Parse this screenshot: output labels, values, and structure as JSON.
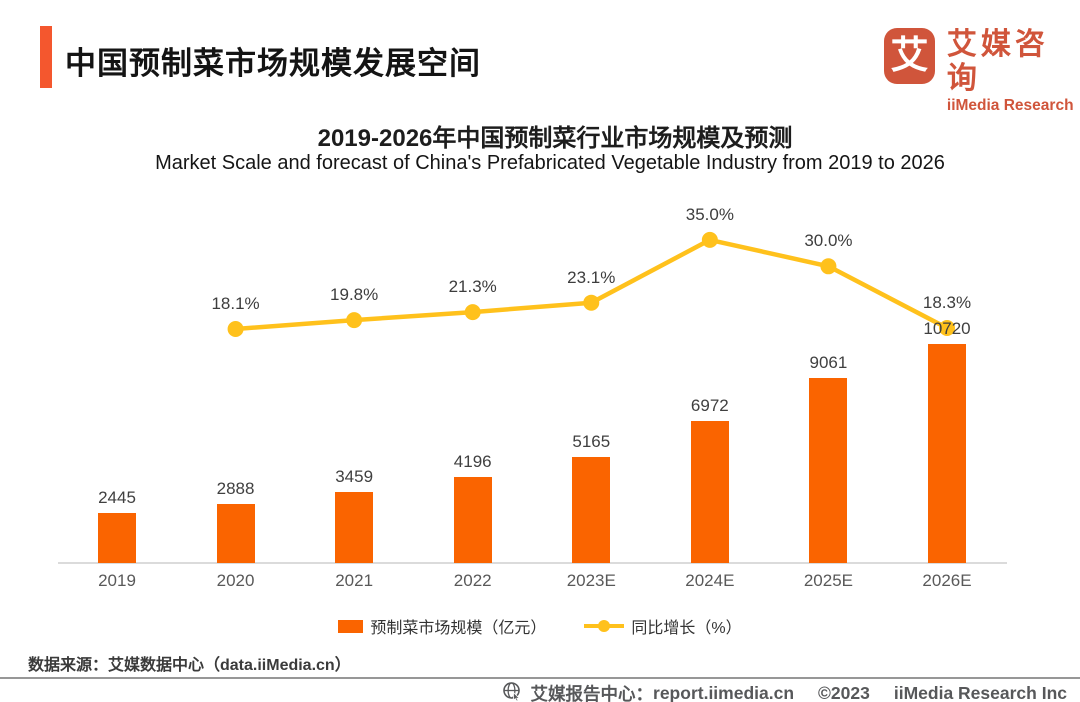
{
  "header": {
    "title": "中国预制菜市场规模发展空间",
    "logo": {
      "glyph": "艾",
      "name_cn": "艾媒咨询",
      "name_en": "iiMedia Research"
    }
  },
  "chart": {
    "title": "2019-2026年中国预制菜行业市场规模及预测",
    "subtitle": "Market Scale and forecast of China's Prefabricated Vegetable Industry from 2019 to 2026"
  },
  "chart_data": {
    "type": "bar",
    "categories": [
      "2019",
      "2020",
      "2021",
      "2022",
      "2023E",
      "2024E",
      "2025E",
      "2026E"
    ],
    "series": [
      {
        "name": "预制菜市场规模（亿元）",
        "type": "bar",
        "color": "#FA6400",
        "values": [
          2445,
          2888,
          3459,
          4196,
          5165,
          6972,
          9061,
          10720
        ]
      },
      {
        "name": "同比增长（%）",
        "type": "line",
        "color": "#FFC11C",
        "values": [
          null,
          18.1,
          19.8,
          21.3,
          23.1,
          35.0,
          30.0,
          18.3
        ],
        "labels": [
          null,
          "18.1%",
          "19.8%",
          "21.3%",
          "23.1%",
          "35.0%",
          "30.0%",
          "18.3%"
        ]
      }
    ],
    "title": "2019-2026年中国预制菜行业市场规模及预测",
    "subtitle": "Market Scale and forecast of China's Prefabricated Vegetable Industry from 2019 to 2026",
    "xlabel": "",
    "ylabel": "",
    "ylim_bar": [
      0,
      11000
    ],
    "grid": false,
    "legend_position": "bottom"
  },
  "source": "数据来源：艾媒数据中心（data.iiMedia.cn）",
  "footer": {
    "site_label": "艾媒报告中心：",
    "site_url": "report.iimedia.cn",
    "copyright": "©2023",
    "company": "iiMedia Research  Inc"
  }
}
